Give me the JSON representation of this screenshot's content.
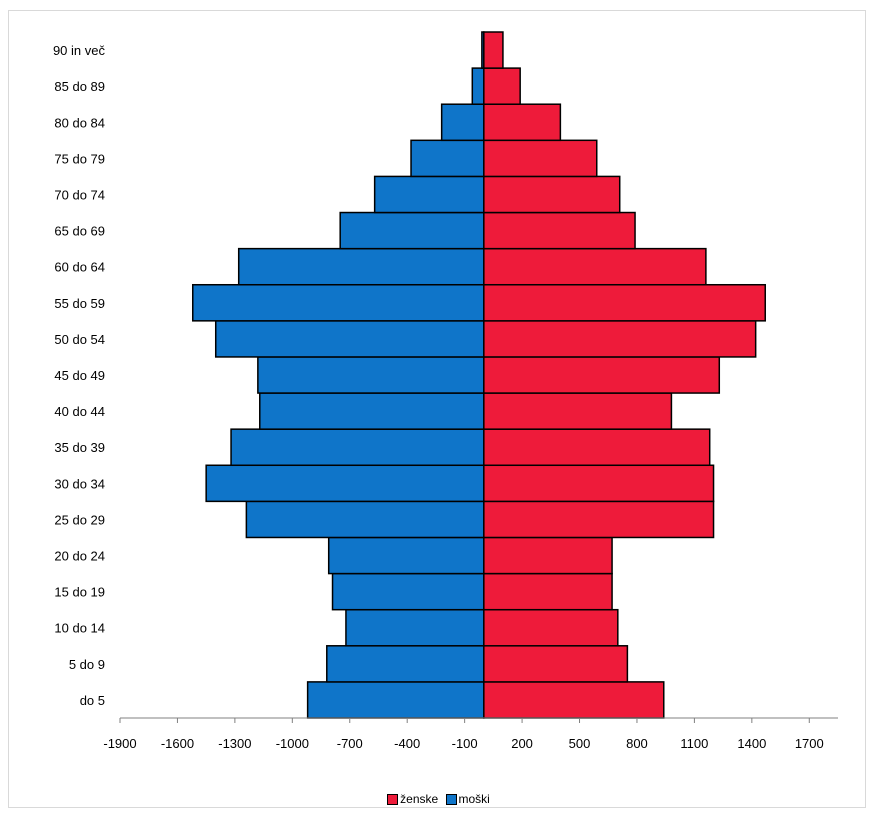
{
  "chart_data": {
    "type": "bar",
    "orientation": "horizontal",
    "categories": [
      "do 5",
      "5 do 9",
      "10 do 14",
      "15 do 19",
      "20 do 24",
      "25 do 29",
      "30 do 34",
      "35 do 39",
      "40 do 44",
      "45 do 49",
      "50 do 54",
      "55 do 59",
      "60 do 64",
      "65 do 69",
      "70 do 74",
      "75 do 79",
      "80 do 84",
      "85 do 89",
      "90 in več"
    ],
    "series": [
      {
        "name": "ženske",
        "color": "#ee1b3a",
        "values": [
          940,
          750,
          700,
          670,
          670,
          1200,
          1200,
          1180,
          980,
          1230,
          1420,
          1470,
          1160,
          790,
          710,
          590,
          400,
          190,
          100
        ]
      },
      {
        "name": "moški",
        "color": "#0f75c9",
        "values": [
          -920,
          -820,
          -720,
          -790,
          -810,
          -1240,
          -1450,
          -1320,
          -1170,
          -1180,
          -1400,
          -1520,
          -1280,
          -750,
          -570,
          -380,
          -220,
          -60,
          -10
        ]
      }
    ],
    "xlim": [
      -1900,
      1850
    ],
    "xticks": [
      -1900,
      -1600,
      -1300,
      -1000,
      -700,
      -400,
      -100,
      200,
      500,
      800,
      1100,
      1400,
      1700
    ],
    "legend_position": "bottom",
    "grid": false
  }
}
